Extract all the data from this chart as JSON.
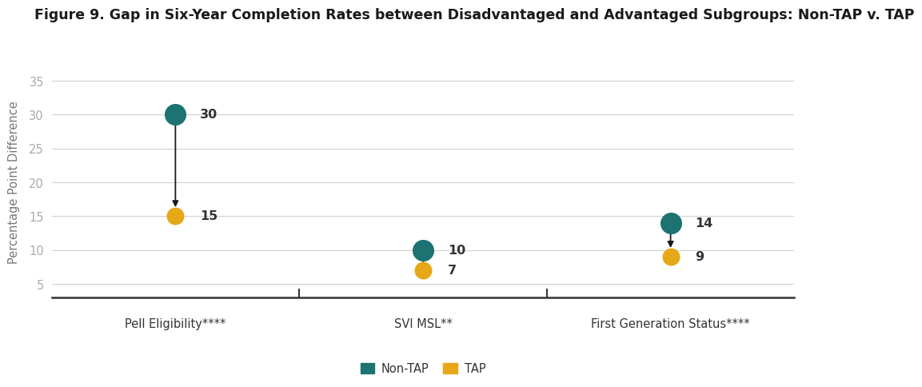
{
  "title": "Figure 9. Gap in Six-Year Completion Rates between Disadvantaged and Advantaged Subgroups: Non-TAP v. TAP",
  "ylabel": "Percentage Point Difference",
  "categories": [
    "Pell Eligibility****",
    "SVI MSL**",
    "First Generation Status****"
  ],
  "x_positions": [
    1,
    2,
    3
  ],
  "nontap_values": [
    30,
    10,
    14
  ],
  "tap_values": [
    15,
    7,
    9
  ],
  "nontap_color": "#1d7272",
  "tap_color": "#e6a817",
  "arrow_color": "#1a1a1a",
  "ylim": [
    3,
    37
  ],
  "yticks": [
    5,
    10,
    15,
    20,
    25,
    30,
    35
  ],
  "xlim": [
    0.5,
    3.5
  ],
  "background_color": "#ffffff",
  "grid_color": "#d0d0d0",
  "title_fontsize": 12.5,
  "label_fontsize": 10.5,
  "tick_fontsize": 10.5,
  "annotation_fontsize": 11.5,
  "legend_label_nontap": "Non-TAP",
  "legend_label_tap": "TAP",
  "dot_size": 380,
  "dot_size_tap": 250
}
